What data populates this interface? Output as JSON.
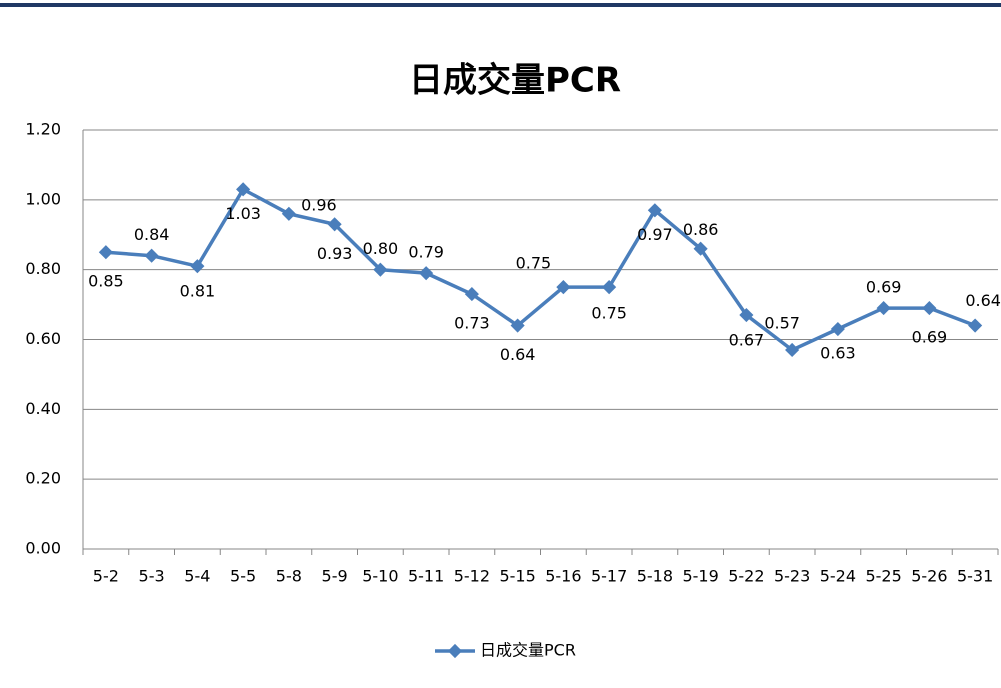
{
  "chart_data": {
    "type": "line",
    "title": "日成交量PCR",
    "categories": [
      "5-2",
      "5-3",
      "5-4",
      "5-5",
      "5-8",
      "5-9",
      "5-10",
      "5-11",
      "5-12",
      "5-15",
      "5-16",
      "5-17",
      "5-18",
      "5-19",
      "5-22",
      "5-23",
      "5-24",
      "5-25",
      "5-26",
      "5-31"
    ],
    "series": [
      {
        "name": "日成交量PCR",
        "color": "#4a7ebb",
        "values": [
          0.85,
          0.84,
          0.81,
          1.03,
          0.96,
          0.93,
          0.8,
          0.79,
          0.73,
          0.64,
          0.75,
          0.75,
          0.97,
          0.86,
          0.67,
          0.57,
          0.63,
          0.69,
          0.69,
          0.64
        ],
        "value_labels": [
          "0.85",
          "0.84",
          "0.81",
          "1.03",
          "0.96",
          "0.93",
          "0.80",
          "0.79",
          "0.73",
          "0.64",
          "0.75",
          "0.75",
          "0.97",
          "0.86",
          "0.67",
          "0.57",
          "0.63",
          "0.69",
          "0.69",
          "0.64"
        ]
      }
    ],
    "ylim": [
      0,
      1.2
    ],
    "yticks": [
      {
        "value": 0,
        "label": "0.00"
      },
      {
        "value": 0.2,
        "label": "0.20"
      },
      {
        "value": 0.4,
        "label": "0.40"
      },
      {
        "value": 0.6,
        "label": "0.60"
      },
      {
        "value": 0.8,
        "label": "0.80"
      },
      {
        "value": 1.0,
        "label": "1.00"
      },
      {
        "value": 1.2,
        "label": "1.20"
      }
    ],
    "grid": true,
    "legend": "bottom"
  }
}
